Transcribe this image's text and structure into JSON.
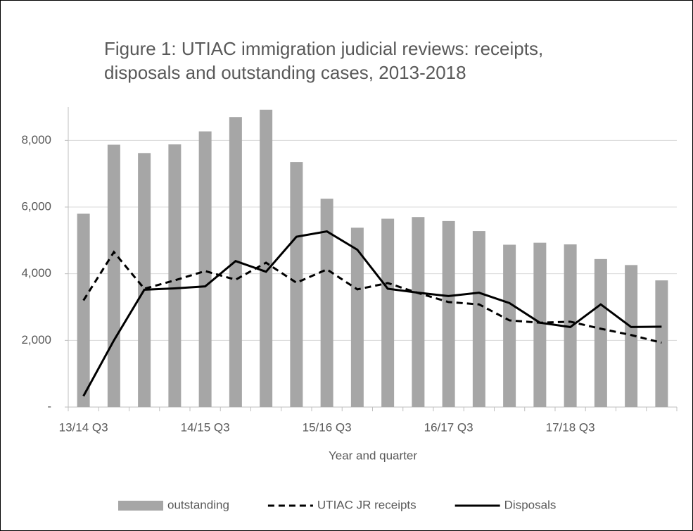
{
  "chart_data": {
    "type": "bar_line",
    "title": "Figure 1: UTIAC immigration judicial reviews: receipts, disposals and outstanding cases, 2013-2018",
    "x_label": "Year and quarter",
    "categories": [
      "13/14 Q3",
      null,
      null,
      null,
      "14/15 Q3",
      null,
      null,
      null,
      "15/16 Q3",
      null,
      null,
      null,
      "16/17 Q3",
      null,
      null,
      null,
      "17/18 Q3",
      null,
      null,
      null
    ],
    "series": [
      {
        "name": "outstanding",
        "color": "#a6a6a6",
        "kind": "bar",
        "values": [
          5800,
          7870,
          7620,
          7880,
          8270,
          8700,
          8920,
          7350,
          6250,
          5380,
          5650,
          5700,
          5580,
          5280,
          4870,
          4930,
          4880,
          4440,
          4260,
          3800
        ]
      },
      {
        "name": "UTIAC JR receipts",
        "color": "#000000",
        "kind": "dashed",
        "values": [
          3200,
          4650,
          3550,
          3800,
          4080,
          3820,
          4330,
          3730,
          4130,
          3530,
          3720,
          3420,
          3150,
          3080,
          2600,
          2530,
          2560,
          2350,
          2160,
          1930
        ]
      },
      {
        "name": "Disposals",
        "color": "#000000",
        "kind": "line",
        "values": [
          330,
          2000,
          3520,
          3560,
          3620,
          4380,
          4060,
          5110,
          5270,
          4720,
          3550,
          3430,
          3330,
          3430,
          3120,
          2530,
          2400,
          3080,
          2400,
          2410
        ]
      }
    ],
    "ylim": [
      0,
      9000
    ],
    "yticks": [
      {
        "value": 0,
        "label": "-"
      },
      {
        "value": 2000,
        "label": "2,000"
      },
      {
        "value": 4000,
        "label": "4,000"
      },
      {
        "value": 6000,
        "label": "6,000"
      },
      {
        "value": 8000,
        "label": "8,000"
      }
    ],
    "grid": true,
    "legend": "bottom"
  }
}
